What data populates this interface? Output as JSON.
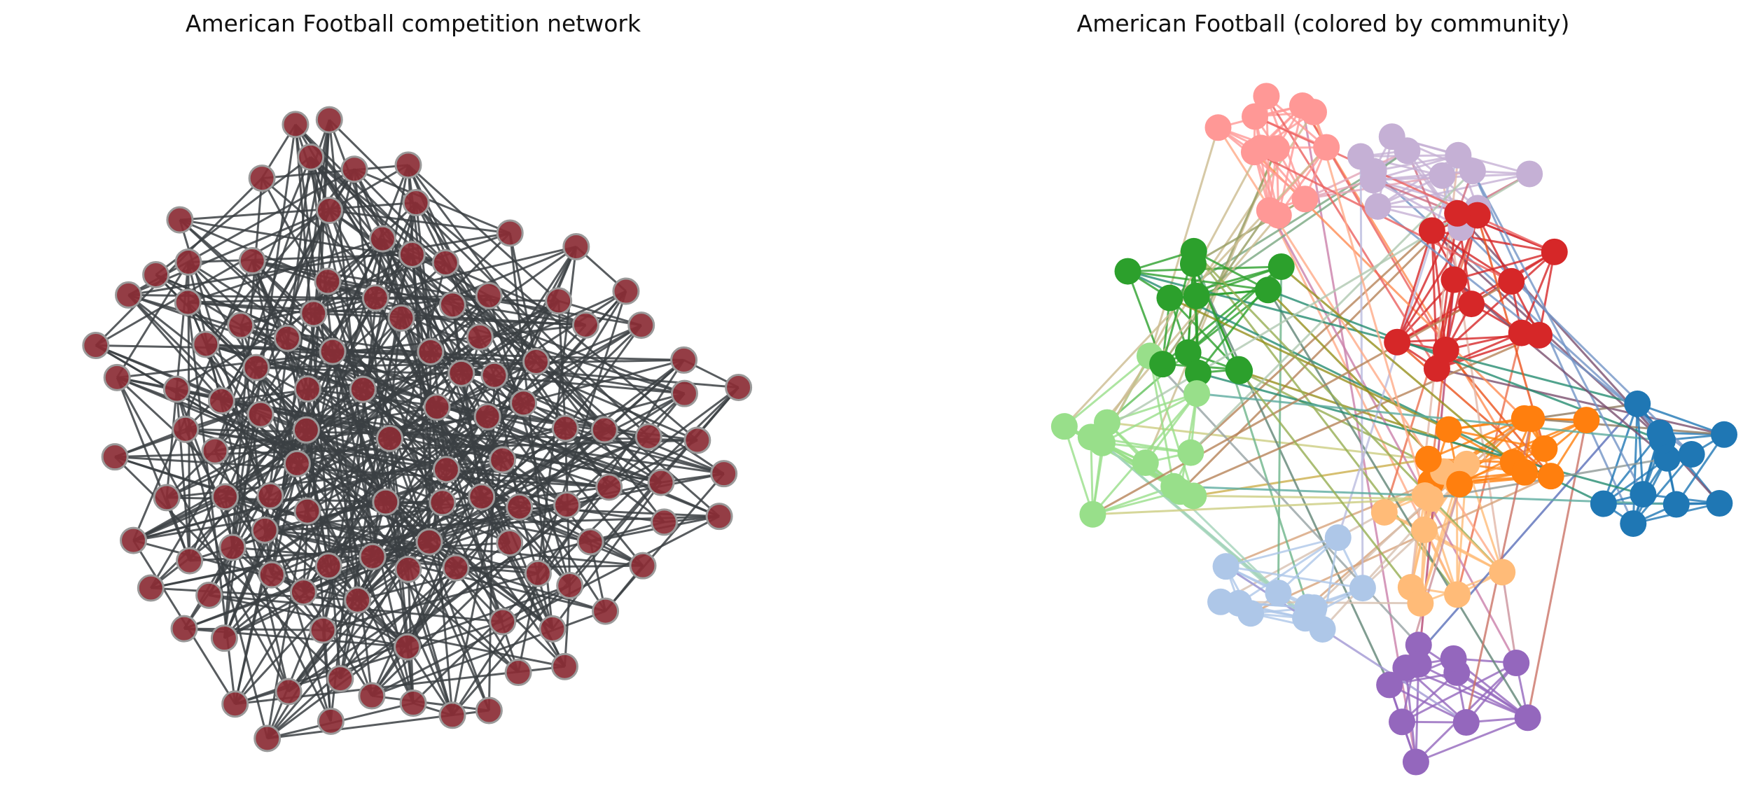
{
  "left_title": "American Football competition network",
  "right_title": "American Football (colored by community)",
  "graph": {
    "layout_seed": 7,
    "node_count": 115,
    "edges_per_node": 3,
    "left_node_fill": "#8b2d35",
    "left_node_stroke": "#9a9a9a",
    "left_edge_color": "#3b4043",
    "community_colors": [
      "#ff9896",
      "#c5b0d5",
      "#d62728",
      "#2ca02c",
      "#98df8a",
      "#ff7f0e",
      "#1f77b4",
      "#aec7e8",
      "#ffbb78",
      "#9467bd"
    ]
  }
}
